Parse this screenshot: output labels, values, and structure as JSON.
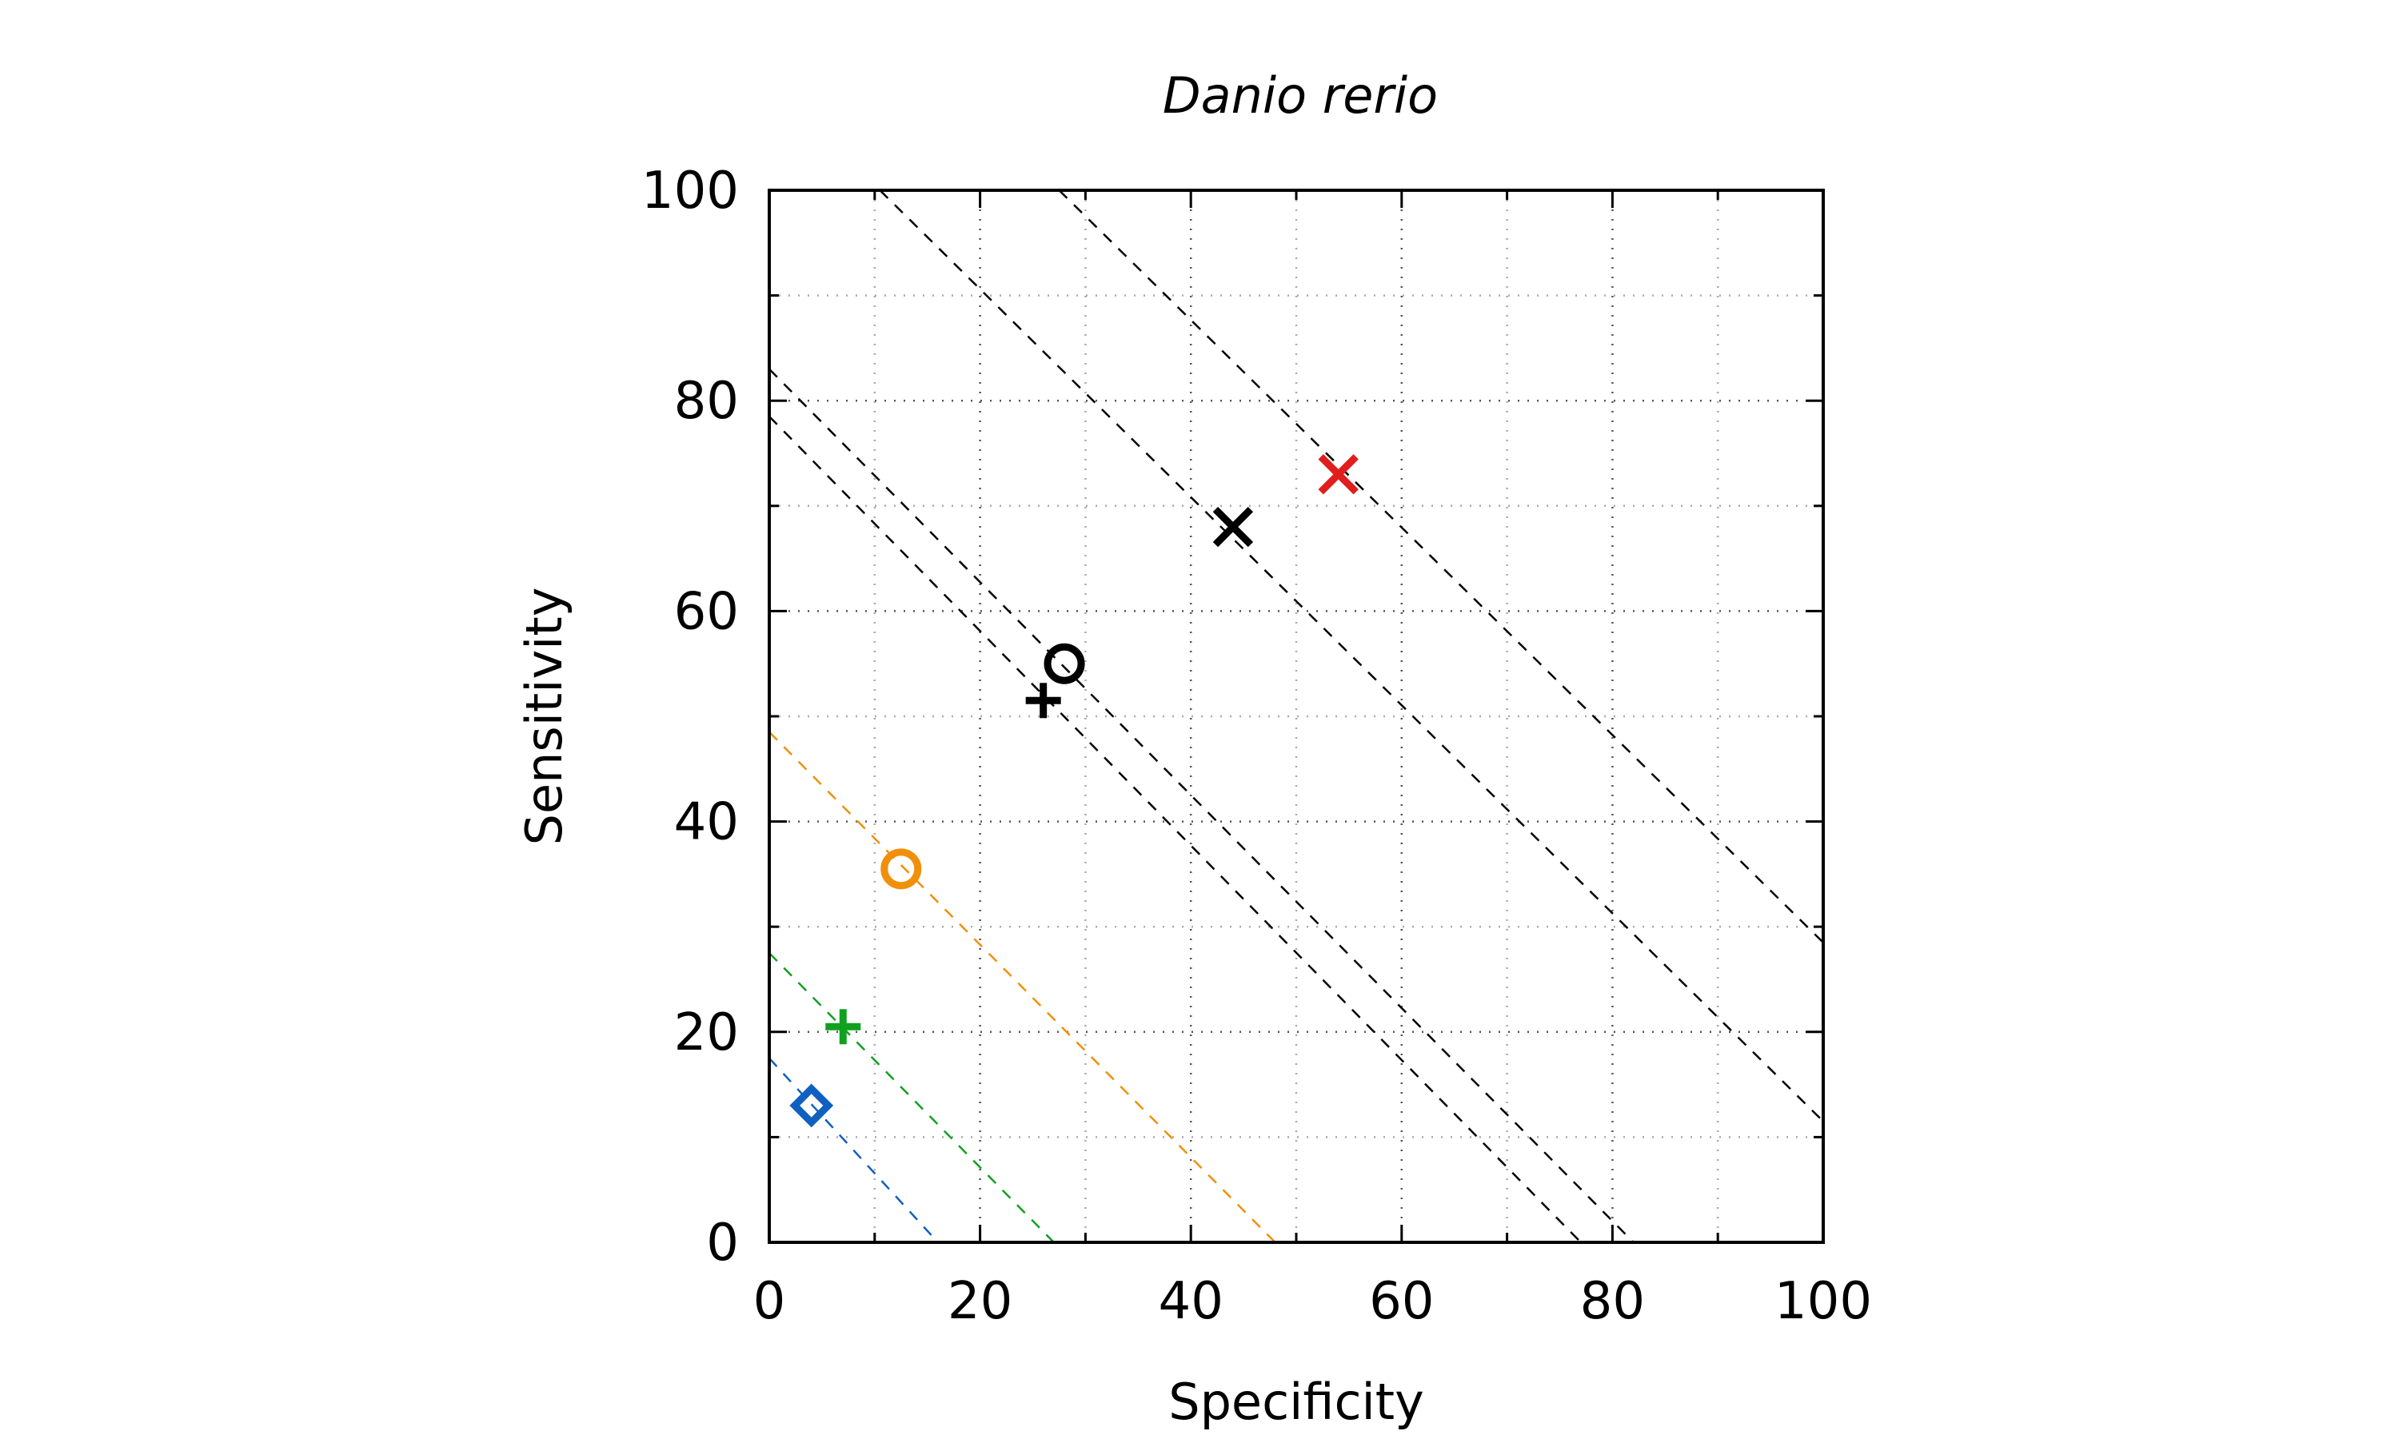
{
  "chart_data": {
    "type": "scatter",
    "title": "Danio rerio",
    "xlabel": "Specificity",
    "ylabel": "Sensitivity",
    "xlim": [
      0,
      100
    ],
    "ylim": [
      0,
      100
    ],
    "xticks": [
      "0",
      "20",
      "40",
      "60",
      "80",
      "100"
    ],
    "yticks": [
      "0",
      "20",
      "40",
      "60",
      "80",
      "100"
    ],
    "grid": true,
    "legend": "none",
    "points": [
      {
        "marker": "diamond",
        "color": "#1060c0",
        "x": 4,
        "y": 13
      },
      {
        "marker": "plus",
        "color": "#10a020",
        "x": 7,
        "y": 20.5
      },
      {
        "marker": "circle",
        "color": "#f0900a",
        "x": 12.5,
        "y": 35.5
      },
      {
        "marker": "plus",
        "color": "#000000",
        "x": 26,
        "y": 51.5
      },
      {
        "marker": "circle",
        "color": "#000000",
        "x": 28,
        "y": 55
      },
      {
        "marker": "cross",
        "color": "#000000",
        "x": 44,
        "y": 68
      },
      {
        "marker": "cross",
        "color": "#e01e1e",
        "x": 54,
        "y": 73
      }
    ],
    "reference_lines": [
      {
        "color": "#1060c0",
        "x_start": 0,
        "y_start": 17.5,
        "x_end": 16,
        "y_end": 0
      },
      {
        "color": "#10a020",
        "x_start": 0,
        "y_start": 27.5,
        "x_end": 27,
        "y_end": 0
      },
      {
        "color": "#f0900a",
        "x_start": 0,
        "y_start": 48.5,
        "x_end": 48,
        "y_end": 0
      },
      {
        "color": "#000000",
        "x_start": 0,
        "y_start": 78.5,
        "x_end": 77,
        "y_end": 0
      },
      {
        "color": "#000000",
        "x_start": 0,
        "y_start": 83,
        "x_end": 82,
        "y_end": 0
      },
      {
        "color": "#000000",
        "x_start": 10.5,
        "y_start": 100,
        "x_end": 100,
        "y_end": 11.5
      },
      {
        "color": "#000000",
        "x_start": 27.5,
        "y_start": 100,
        "x_end": 100,
        "y_end": 28.5
      }
    ]
  }
}
